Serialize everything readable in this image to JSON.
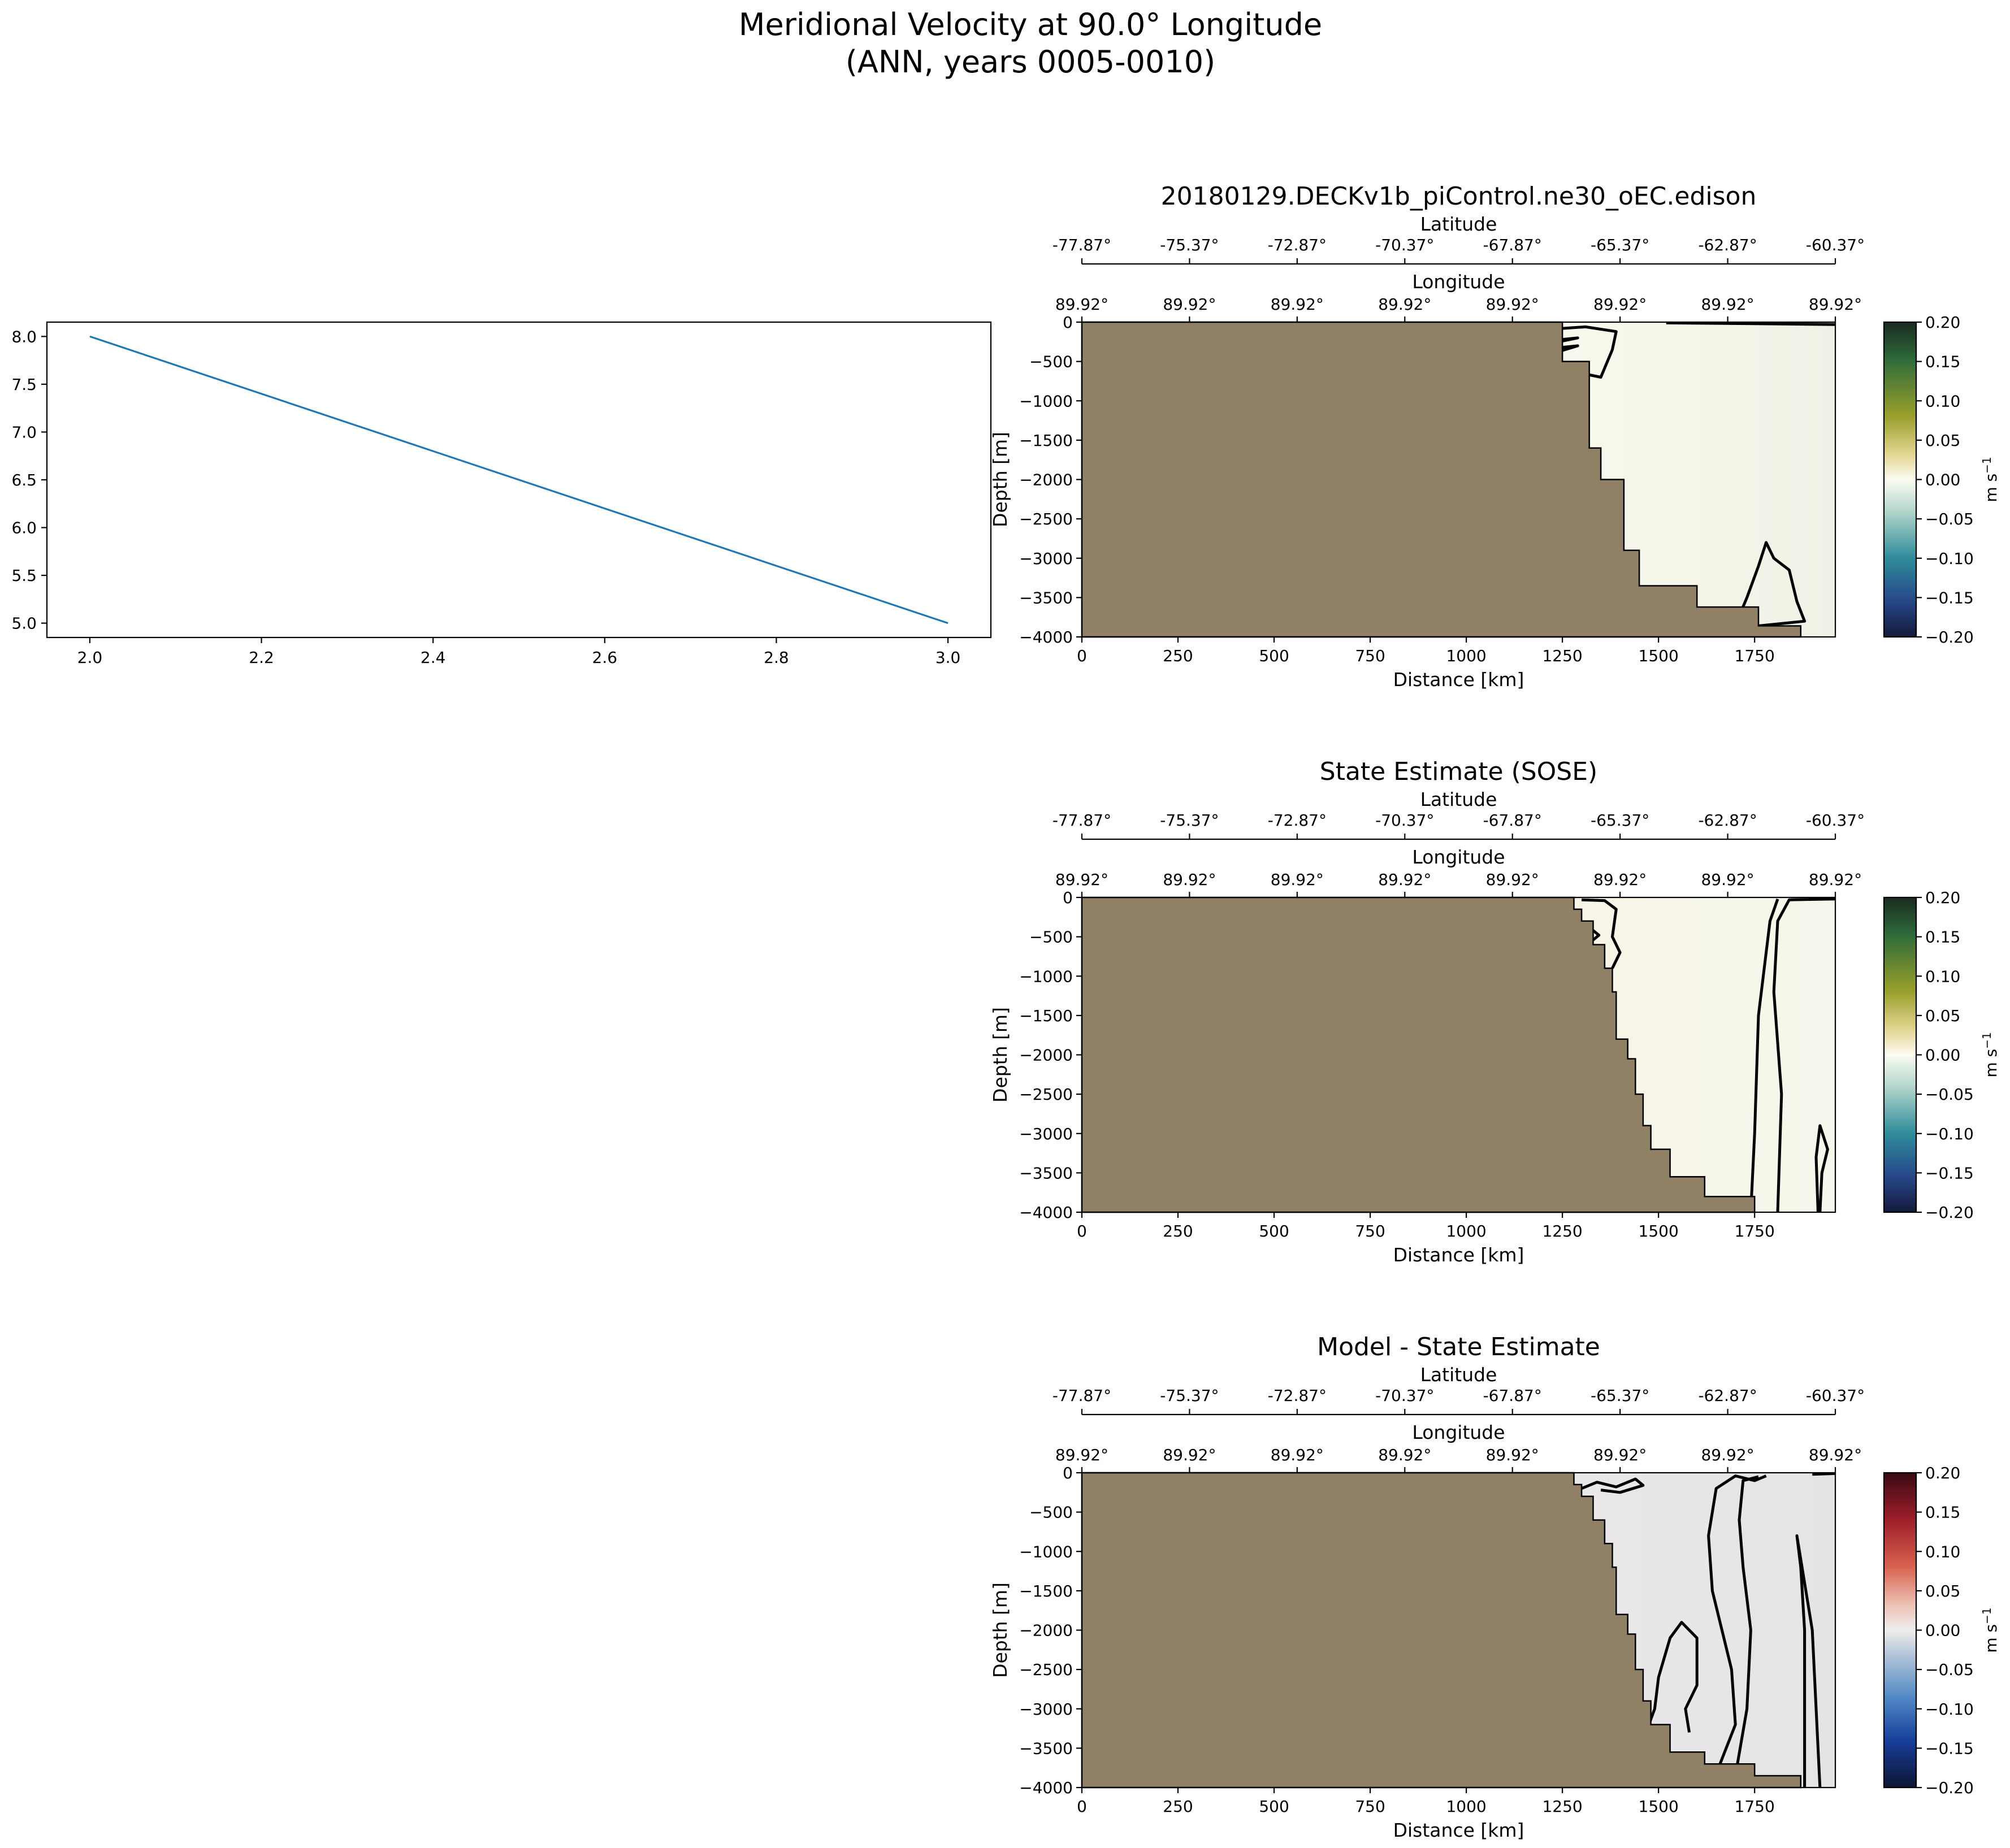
{
  "figure": {
    "suptitle": [
      "Meridional Velocity at 90.0° Longitude",
      "(ANN, years 0005-0010)"
    ]
  },
  "line_panel": {
    "x_ticks": [
      "2.0",
      "2.2",
      "2.4",
      "2.6",
      "2.8",
      "3.0"
    ],
    "y_ticks": [
      "5.0",
      "5.5",
      "6.0",
      "6.5",
      "7.0",
      "7.5",
      "8.0"
    ],
    "line_color": "#1f77b4"
  },
  "section_axes": {
    "latitude_label": "Latitude",
    "longitude_label": "Longitude",
    "xlabel": "Distance [km]",
    "ylabel": "Depth [m]",
    "latitude_ticks": [
      "-77.87°",
      "-75.37°",
      "-72.87°",
      "-70.37°",
      "-67.87°",
      "-65.37°",
      "-62.87°",
      "-60.37°"
    ],
    "longitude_ticks": [
      "89.92°",
      "89.92°",
      "89.92°",
      "89.92°",
      "89.92°",
      "89.92°",
      "89.92°",
      "89.92°"
    ],
    "x_ticks": [
      "0",
      "250",
      "500",
      "750",
      "1000",
      "1250",
      "1500",
      "1750"
    ],
    "y_ticks": [
      "0",
      "−500",
      "−1000",
      "−1500",
      "−2000",
      "−2500",
      "−3000",
      "−3500",
      "−4000"
    ],
    "colorbar_ticks": [
      "0.20",
      "0.15",
      "0.10",
      "0.05",
      "0.00",
      "−0.05",
      "−0.10",
      "−0.15",
      "−0.20"
    ],
    "colorbar_label": "m s",
    "colorbar_label_exp": "−1",
    "land_color": "#8f8066"
  },
  "panels": [
    {
      "title": "20180129.DECKv1b_piControl.ne30_oEC.edison",
      "colormap": "balance-topo"
    },
    {
      "title": "State Estimate (SOSE)",
      "colormap": "balance-topo"
    },
    {
      "title": "Model - State Estimate",
      "colormap": "diverging-red-blue"
    }
  ],
  "chart_data": [
    {
      "type": "line",
      "title": "",
      "xlabel": "",
      "ylabel": "",
      "series": [
        {
          "x": [
            2.0,
            3.0
          ],
          "y": [
            8.0,
            5.0
          ]
        }
      ],
      "xlim": [
        1.95,
        3.05
      ],
      "ylim": [
        4.85,
        8.15
      ]
    },
    {
      "type": "heatmap",
      "title": "20180129.DECKv1b_piControl.ne30_oEC.edison",
      "xlabel": "Distance [km]",
      "ylabel": "Depth [m]",
      "xlim": [
        0,
        1960
      ],
      "ylim": [
        -4000,
        0
      ],
      "clim": [
        -0.2,
        0.2
      ],
      "colorbar_label": "m s^-1"
    },
    {
      "type": "heatmap",
      "title": "State Estimate (SOSE)",
      "xlabel": "Distance [km]",
      "ylabel": "Depth [m]",
      "xlim": [
        0,
        1960
      ],
      "ylim": [
        -4000,
        0
      ],
      "clim": [
        -0.2,
        0.2
      ],
      "colorbar_label": "m s^-1"
    },
    {
      "type": "heatmap",
      "title": "Model - State Estimate",
      "xlabel": "Distance [km]",
      "ylabel": "Depth [m]",
      "xlim": [
        0,
        1960
      ],
      "ylim": [
        -4000,
        0
      ],
      "clim": [
        -0.2,
        0.2
      ],
      "colorbar_label": "m s^-1"
    }
  ]
}
